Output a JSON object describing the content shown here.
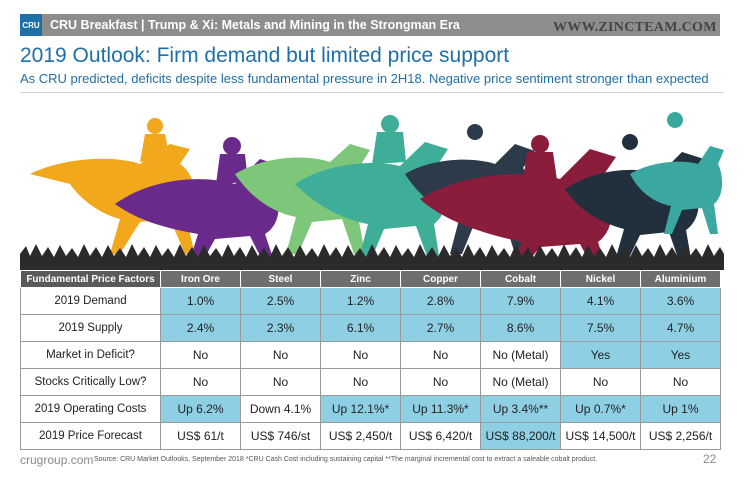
{
  "header": {
    "logo_text": "CRU",
    "text": "CRU Breakfast  |  Trump & Xi: Metals and Mining in the Strongman Era",
    "watermark": "WWW.ZINCTEAM.COM"
  },
  "slide": {
    "title": "2019 Outlook: Firm demand but limited price support",
    "subtitle": "As CRU predicted, deficits despite less fundamental pressure in 2H18. Negative price sentiment stronger than expected"
  },
  "illustration": {
    "description_icon": "racehorses-icon",
    "colors": [
      "#f2a81d",
      "#6a2a8c",
      "#7ec77a",
      "#3fae98",
      "#8a1c3c",
      "#2c3a4a",
      "#3aa8a0"
    ]
  },
  "table": {
    "headers": [
      "Fundamental Price Factors",
      "Iron Ore",
      "Steel",
      "Zinc",
      "Copper",
      "Cobalt",
      "Nickel",
      "Aluminium"
    ],
    "rows": [
      {
        "label": "2019 Demand",
        "cells": [
          {
            "text": "1.0%",
            "fill": "blue"
          },
          {
            "text": "2.5%",
            "fill": "blue"
          },
          {
            "text": "1.2%",
            "fill": "blue"
          },
          {
            "text": "2.8%",
            "fill": "blue"
          },
          {
            "text": "7.9%",
            "fill": "blue"
          },
          {
            "text": "4.1%",
            "fill": "blue"
          },
          {
            "text": "3.6%",
            "fill": "blue"
          }
        ]
      },
      {
        "label": "2019 Supply",
        "cells": [
          {
            "text": "2.4%",
            "fill": "blue"
          },
          {
            "text": "2.3%",
            "fill": "blue"
          },
          {
            "text": "6.1%",
            "fill": "blue"
          },
          {
            "text": "2.7%",
            "fill": "blue"
          },
          {
            "text": "8.6%",
            "fill": "blue"
          },
          {
            "text": "7.5%",
            "fill": "blue"
          },
          {
            "text": "4.7%",
            "fill": "blue"
          }
        ]
      },
      {
        "label": "Market in Deficit?",
        "cells": [
          {
            "text": "No",
            "fill": "white"
          },
          {
            "text": "No",
            "fill": "white"
          },
          {
            "text": "No",
            "fill": "white"
          },
          {
            "text": "No",
            "fill": "white"
          },
          {
            "text": "No   (Metal)",
            "fill": "white"
          },
          {
            "text": "Yes",
            "fill": "blue"
          },
          {
            "text": "Yes",
            "fill": "blue"
          }
        ]
      },
      {
        "label": "Stocks Critically Low?",
        "cells": [
          {
            "text": "No",
            "fill": "white"
          },
          {
            "text": "No",
            "fill": "white"
          },
          {
            "text": "No",
            "fill": "white"
          },
          {
            "text": "No",
            "fill": "white"
          },
          {
            "text": "No   (Metal)",
            "fill": "white"
          },
          {
            "text": "No",
            "fill": "white"
          },
          {
            "text": "No",
            "fill": "white"
          }
        ]
      },
      {
        "label": "2019 Operating Costs",
        "cells": [
          {
            "text": "Up 6.2%",
            "fill": "blue"
          },
          {
            "text": "Down 4.1%",
            "fill": "white"
          },
          {
            "text": "Up 12.1%*",
            "fill": "blue"
          },
          {
            "text": "Up 11.3%*",
            "fill": "blue"
          },
          {
            "text": "Up 3.4%**",
            "fill": "blue"
          },
          {
            "text": "Up 0.7%*",
            "fill": "blue"
          },
          {
            "text": "Up 1%",
            "fill": "blue"
          }
        ]
      },
      {
        "label": "2019 Price Forecast",
        "cells": [
          {
            "text": "US$ 61/t",
            "fill": "white"
          },
          {
            "text": "US$ 746/st",
            "fill": "white"
          },
          {
            "text": "US$ 2,450/t",
            "fill": "white"
          },
          {
            "text": "US$ 6,420/t",
            "fill": "white"
          },
          {
            "text": "US$ 88,200/t",
            "fill": "blue"
          },
          {
            "text": "US$ 14,500/t",
            "fill": "white"
          },
          {
            "text": "US$ 2,256/t",
            "fill": "white"
          }
        ]
      }
    ]
  },
  "footer": {
    "site": "crugroup.com",
    "note": "Source: CRU Market Outlooks, September 2018  *CRU Cash Cost including sustaining capital **The marginal incremental cost to extract a saleable cobalt product.",
    "page_number": "22"
  }
}
